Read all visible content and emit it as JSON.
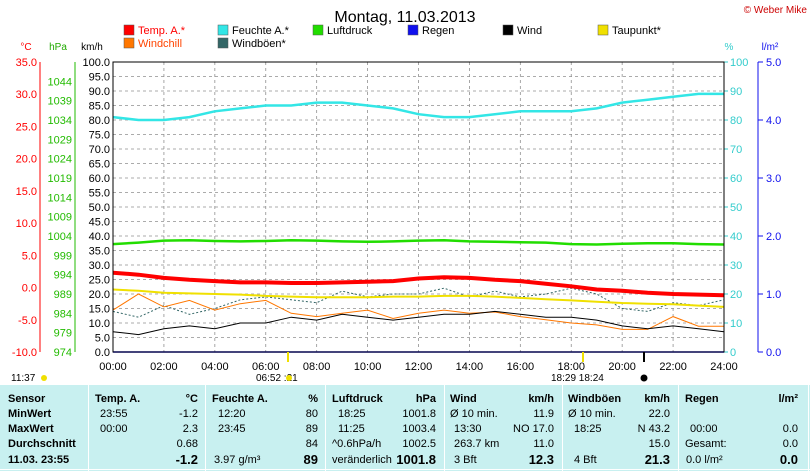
{
  "title": "Montag, 11.03.2013",
  "copyright": "© Weber Mike",
  "axis_units": {
    "temp": "°C",
    "pressure": "hPa",
    "wind": "km/h",
    "humidity": "%",
    "rain": "l/m²"
  },
  "legend": [
    {
      "label": "Temp. A.*",
      "color": "#ff0000"
    },
    {
      "label": "Feuchte A.*",
      "color": "#33e6e6"
    },
    {
      "label": "Luftdruck",
      "color": "#22dd00"
    },
    {
      "label": "Regen",
      "color": "#1010ee"
    },
    {
      "label": "Wind",
      "color": "#000000"
    },
    {
      "label": "Taupunkt*",
      "color": "#f0e000"
    },
    {
      "label": "Windchill",
      "color": "#ff7700"
    },
    {
      "label": "Windböen*",
      "color": "#336666"
    }
  ],
  "colors": {
    "temp": "#ff0000",
    "pressure": "#22dd00",
    "humidity": "#33e6e6",
    "rain": "#1010ee",
    "grid": "#909090",
    "table_bg": "#c8f0f0"
  },
  "footer_marks": {
    "left_time": "11:37",
    "sunrise": "06:52 :21",
    "sunset": "18:29 18:24"
  },
  "chart_data": {
    "type": "line",
    "x_label_unit": "time",
    "x_ticks": [
      "00:00",
      "02:00",
      "04:00",
      "06:00",
      "08:00",
      "10:00",
      "12:00",
      "14:00",
      "16:00",
      "18:00",
      "20:00",
      "22:00",
      "24:00"
    ],
    "axes": {
      "temp": {
        "range": [
          -10,
          35
        ],
        "ticks": [
          "35.0",
          "30.0",
          "25.0",
          "20.0",
          "15.0",
          "10.0",
          "5.0",
          "0.0",
          "-5.0",
          "-10.0"
        ]
      },
      "pressure": {
        "range": [
          974,
          1049
        ],
        "ticks": [
          "1044",
          "1039",
          "1034",
          "1029",
          "1024",
          "1019",
          "1014",
          "1009",
          "1004",
          "999",
          "994",
          "989",
          "984",
          "979",
          "974"
        ]
      },
      "wind": {
        "range": [
          0,
          100
        ],
        "ticks": [
          "100.0",
          "95.0",
          "90.0",
          "85.0",
          "80.0",
          "75.0",
          "70.0",
          "65.0",
          "60.0",
          "55.0",
          "50.0",
          "45.0",
          "40.0",
          "35.0",
          "30.0",
          "25.0",
          "20.0",
          "15.0",
          "10.0",
          "5.0",
          "0.0"
        ]
      },
      "humidity": {
        "range": [
          0,
          100
        ],
        "ticks": [
          "100",
          "90",
          "80",
          "70",
          "60",
          "50",
          "40",
          "30",
          "20",
          "10",
          "0"
        ]
      },
      "rain": {
        "range": [
          0,
          5
        ],
        "ticks": [
          "5.0",
          "4.0",
          "3.0",
          "2.0",
          "1.0",
          "0.0"
        ]
      }
    },
    "series": [
      {
        "name": "Temp. A.*",
        "axis": "temp",
        "x": [
          0,
          1,
          2,
          3,
          4,
          5,
          6,
          7,
          8,
          9,
          10,
          11,
          12,
          13,
          14,
          15,
          16,
          17,
          18,
          19,
          20,
          21,
          22,
          23,
          24
        ],
        "y": [
          2.3,
          2.0,
          1.5,
          1.2,
          1.0,
          0.8,
          0.8,
          0.7,
          0.7,
          0.8,
          0.9,
          1.0,
          1.4,
          1.6,
          1.5,
          1.2,
          1.0,
          0.6,
          0.2,
          -0.3,
          -0.5,
          -0.8,
          -1.0,
          -1.1,
          -1.2
        ]
      },
      {
        "name": "Feuchte A.*",
        "axis": "humidity",
        "x": [
          0,
          1,
          2,
          3,
          4,
          5,
          6,
          7,
          8,
          9,
          10,
          11,
          12,
          13,
          14,
          15,
          16,
          17,
          18,
          19,
          20,
          21,
          22,
          23,
          24
        ],
        "y": [
          81,
          80,
          80,
          81,
          83,
          84,
          85,
          85,
          86,
          86,
          85,
          84,
          82,
          81,
          81,
          82,
          83,
          83,
          83,
          84,
          86,
          87,
          88,
          89,
          89
        ]
      },
      {
        "name": "Luftdruck",
        "axis": "pressure",
        "x": [
          0,
          1,
          2,
          3,
          4,
          5,
          6,
          7,
          8,
          9,
          10,
          11,
          12,
          13,
          14,
          15,
          16,
          17,
          18,
          19,
          20,
          21,
          22,
          23,
          24
        ],
        "y": [
          1001.9,
          1002.3,
          1002.8,
          1002.9,
          1002.7,
          1002.6,
          1002.7,
          1002.9,
          1002.8,
          1002.6,
          1002.5,
          1002.6,
          1002.8,
          1002.9,
          1002.6,
          1002.5,
          1002.4,
          1002.3,
          1001.9,
          1001.8,
          1002.0,
          1002.1,
          1002.1,
          1001.9,
          1001.8
        ]
      },
      {
        "name": "Taupunkt*",
        "axis": "temp",
        "x": [
          0,
          1,
          2,
          3,
          4,
          5,
          6,
          7,
          8,
          9,
          10,
          11,
          12,
          13,
          14,
          15,
          16,
          17,
          18,
          19,
          20,
          21,
          22,
          23,
          24
        ],
        "y": [
          -0.3,
          -0.5,
          -0.8,
          -0.9,
          -1.0,
          -1.1,
          -1.3,
          -1.4,
          -1.5,
          -1.5,
          -1.5,
          -1.4,
          -1.4,
          -1.3,
          -1.3,
          -1.4,
          -1.6,
          -1.8,
          -2.0,
          -2.2,
          -2.4,
          -2.5,
          -2.6,
          -2.8,
          -3.0
        ]
      },
      {
        "name": "Wind",
        "axis": "wind",
        "x": [
          0,
          1,
          2,
          3,
          4,
          5,
          6,
          7,
          8,
          9,
          10,
          11,
          12,
          13,
          14,
          15,
          16,
          17,
          18,
          19,
          20,
          21,
          22,
          23,
          24
        ],
        "y": [
          7,
          6,
          8,
          9,
          8,
          10,
          10,
          12,
          11,
          13,
          12,
          11,
          12,
          13,
          13,
          14,
          13,
          12,
          12,
          11,
          9,
          8,
          9,
          8,
          7
        ]
      },
      {
        "name": "Windchill",
        "axis": "temp",
        "x": [
          0,
          1,
          2,
          3,
          4,
          5,
          6,
          7,
          8,
          9,
          10,
          11,
          12,
          13,
          14,
          15,
          16,
          17,
          18,
          19,
          20,
          21,
          22,
          23,
          24
        ],
        "y": [
          -3.5,
          -1.0,
          -3.0,
          -2.0,
          -3.5,
          -2.5,
          -2.0,
          -4.0,
          -4.5,
          -4.0,
          -3.5,
          -4.8,
          -4.0,
          -3.5,
          -4.0,
          -3.8,
          -4.5,
          -5.0,
          -5.5,
          -5.8,
          -6.5,
          -6.5,
          -4.5,
          -6.0,
          -6.0
        ]
      },
      {
        "name": "Windböen*",
        "axis": "wind",
        "x": [
          0,
          1,
          2,
          3,
          4,
          5,
          6,
          7,
          8,
          9,
          10,
          11,
          12,
          13,
          14,
          15,
          16,
          17,
          18,
          19,
          20,
          21,
          22,
          23,
          24
        ],
        "y": [
          14,
          12,
          16,
          13,
          15,
          18,
          19,
          18,
          17,
          21,
          19,
          20,
          20,
          22,
          19,
          21,
          19,
          20,
          22,
          20,
          15,
          14,
          17,
          16,
          18
        ]
      },
      {
        "name": "Regen",
        "axis": "rain",
        "x": [
          0,
          24
        ],
        "y": [
          0.0,
          0.0
        ]
      }
    ]
  },
  "table": {
    "headers": [
      "Sensor",
      "Temp. A.",
      "°C",
      "Feuchte A.",
      "%",
      "Luftdruck",
      "hPa",
      "Wind",
      "km/h",
      "Windböen",
      "km/h",
      "Regen",
      "l/m²"
    ],
    "rows": [
      {
        "label": "MinWert",
        "temp_time": "23:55",
        "temp_val": "-1.2",
        "hum_time": "12:20",
        "hum_val": "80",
        "press_time": "18:25",
        "press_val": "1001.8",
        "wind_desc": "Ø 10 min.",
        "wind_val": "11.9",
        "gust_desc": "Ø 10 min.",
        "gust_val": "22.0",
        "rain_time": "",
        "rain_val": ""
      },
      {
        "label": "MaxWert",
        "temp_time": "00:00",
        "temp_val": "2.3",
        "hum_time": "23:45",
        "hum_val": "89",
        "press_time": "11:25",
        "press_val": "1003.4",
        "wind_desc": "13:30",
        "wind_dir": "NO 17.0",
        "gust_desc": "18:25",
        "gust_val": "N 43.2",
        "rain_time": "00:00",
        "rain_val": "0.0"
      },
      {
        "label": "Durchschnitt",
        "temp_time": "",
        "temp_val": "0.68",
        "hum_time": "",
        "hum_val": "84",
        "press_time": "^0.6hPa/h",
        "press_val": "1002.5",
        "wind_desc": "263.7 km",
        "wind_val": "11.0",
        "gust_desc": "",
        "gust_val": "15.0",
        "rain_time": "Gesamt:",
        "rain_val": "0.0"
      },
      {
        "label": "11.03. 23:55",
        "temp_time": "",
        "temp_val": "-1.2",
        "hum_time": "3.97 g/m³",
        "hum_val": "89",
        "press_time": "veränderlich",
        "press_val": "1001.8",
        "wind_desc": "3 Bft",
        "wind_val": "12.3",
        "gust_desc": "4 Bft",
        "gust_val": "21.3",
        "rain_time": "0.0 l/m²",
        "rain_val": "0.0"
      }
    ]
  }
}
